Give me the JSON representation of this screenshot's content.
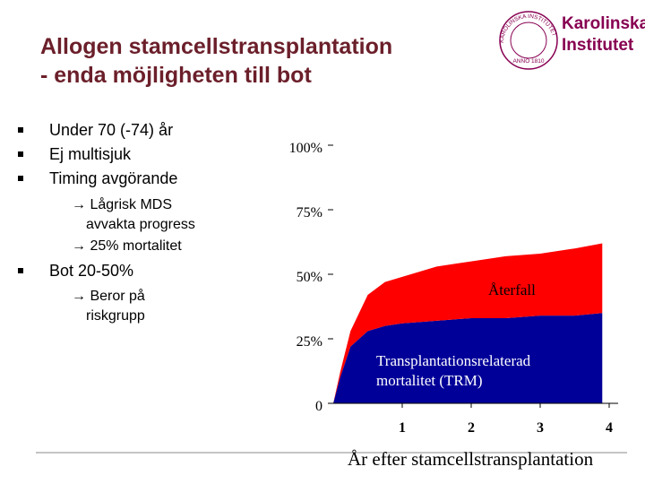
{
  "header": {
    "title_lines": [
      "Allogen stamcellstransplantation",
      "- enda möjligheten till bot"
    ],
    "logo": {
      "name_lines": [
        "Karolinska",
        "Institutet"
      ],
      "seal_text": "KAROLINSKA INSTITUTET",
      "seal_year": "ANNO 1810"
    }
  },
  "bullets": [
    "Under 70 (-74) år",
    "Ej multisjuk",
    "Timing avgörande",
    "Bot 20-50%"
  ],
  "sub_bullets": [
    "Lågrisk MDS avvakta progress",
    "25% mortalitet",
    "Beror på riskgrupp"
  ],
  "chart_data": {
    "type": "area",
    "stacked": true,
    "x": [
      0,
      0.1,
      0.25,
      0.5,
      0.75,
      1,
      1.5,
      2,
      2.5,
      3,
      3.5,
      3.9
    ],
    "series": [
      {
        "name": "Transplantationsrelaterad mortalitet (TRM)",
        "color": "#000099",
        "values": [
          0,
          10,
          22,
          28,
          30,
          31,
          32,
          33,
          33,
          34,
          34,
          35
        ]
      },
      {
        "name": "Återfall",
        "color": "#ff0000",
        "values": [
          0,
          2,
          6,
          14,
          17,
          18,
          21,
          22,
          24,
          24,
          26,
          27
        ]
      }
    ],
    "xlim": [
      0,
      4.13
    ],
    "xticks": [
      1,
      2,
      3,
      4
    ],
    "ylim": [
      0,
      100
    ],
    "yticks": [
      0,
      {
        "value": 25,
        "label": "25%"
      },
      {
        "value": 50,
        "label": "50%"
      },
      {
        "value": 75,
        "label": "75%"
      },
      {
        "value": 100,
        "label": "100%"
      }
    ],
    "x_label": "År efter stamcellstransplantation"
  }
}
